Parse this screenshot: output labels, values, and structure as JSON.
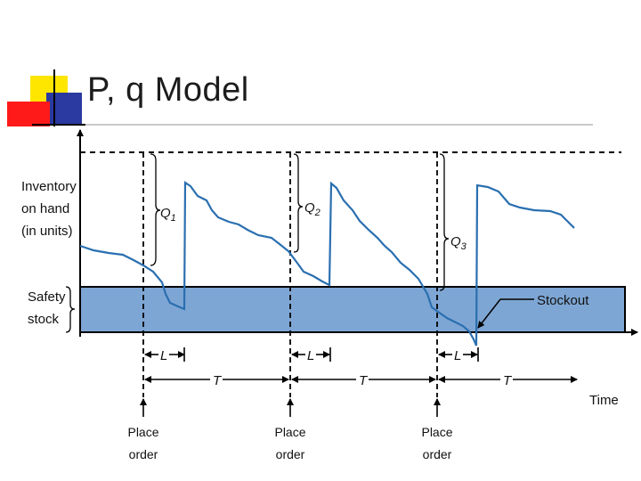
{
  "slide": {
    "title": "P, q Model",
    "colors": {
      "yellow": "#ffe600",
      "red": "#ff1a1a",
      "navy": "#2a3aa0",
      "safety_band": "#7ea6d4",
      "curve": "#2a6fb0"
    }
  },
  "diagram": {
    "y_label": [
      "Inventory",
      "on hand",
      "(in units)"
    ],
    "safety_label": [
      "Safety",
      "stock"
    ],
    "order_quantities": [
      {
        "base": "Q",
        "sub": "1"
      },
      {
        "base": "Q",
        "sub": "2"
      },
      {
        "base": "Q",
        "sub": "3"
      }
    ],
    "lead_time_label": "L",
    "period_label": "T",
    "time_label": "Time",
    "stockout_label": "Stockout",
    "place_order_label": [
      "Place",
      "order"
    ]
  }
}
